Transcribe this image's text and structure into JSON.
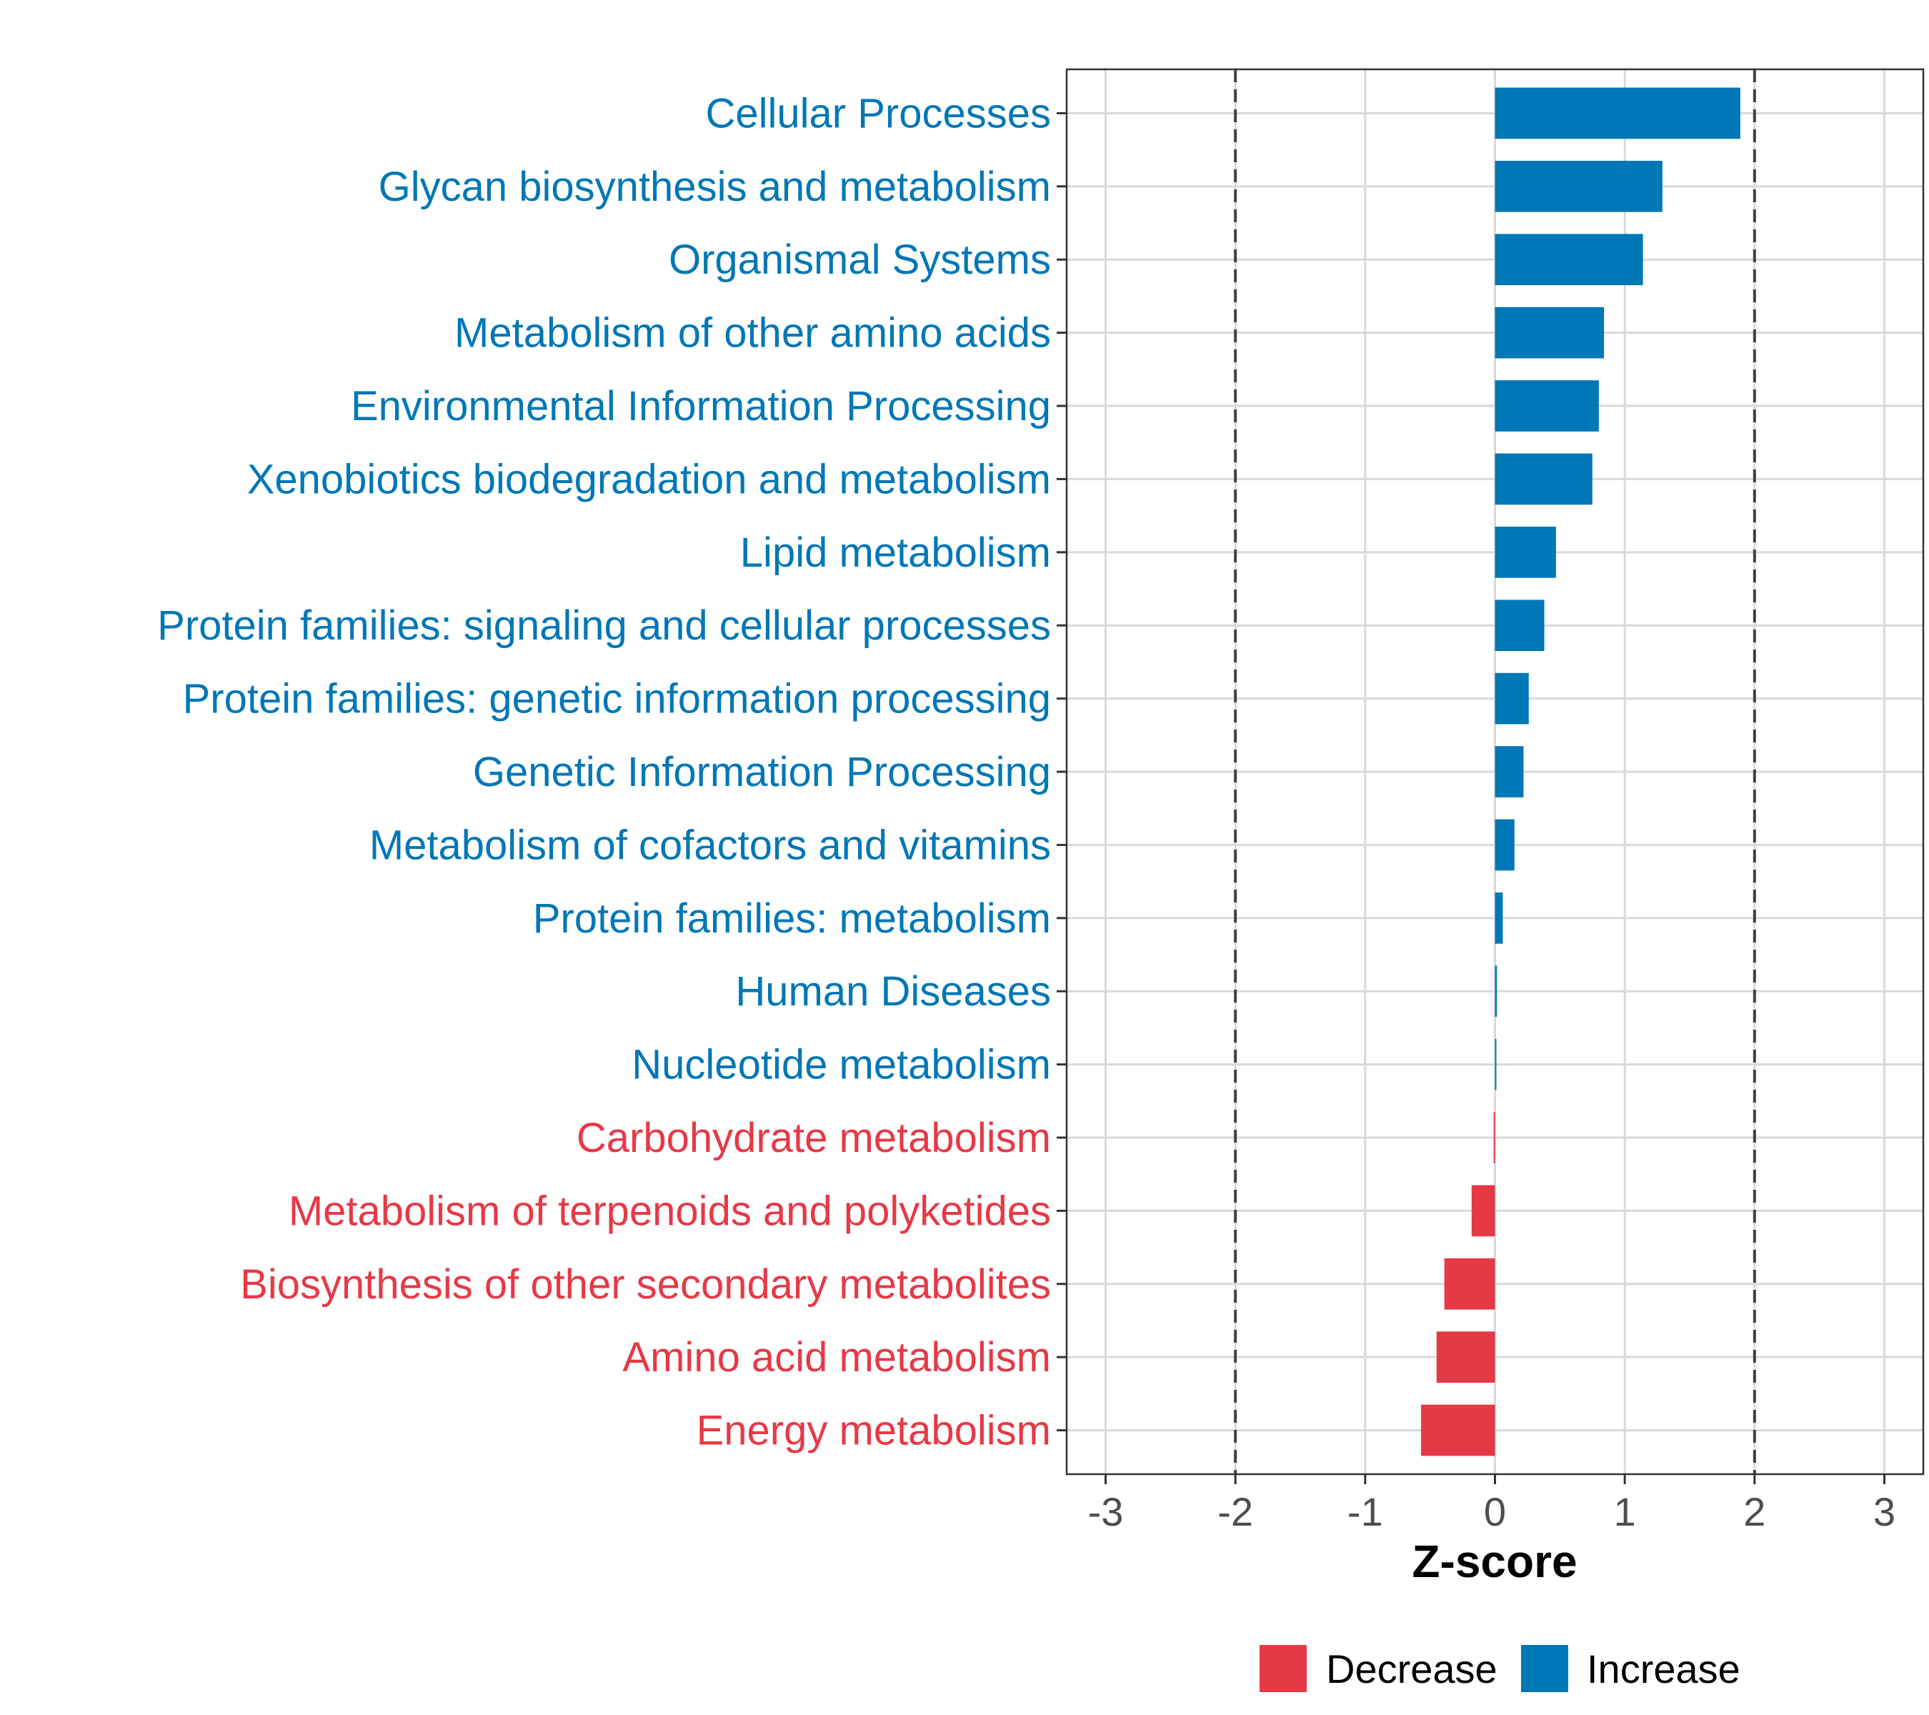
{
  "chart_data": {
    "type": "bar",
    "orientation": "horizontal",
    "title": "",
    "xlabel": "Z-score",
    "ylabel": "",
    "xlim": [
      -3.3,
      3.3
    ],
    "xticks": [
      -3,
      -2,
      -1,
      0,
      1,
      2,
      3
    ],
    "xtick_labels": [
      "-3",
      "-2",
      "-1",
      "0",
      "1",
      "2",
      "3"
    ],
    "reference_lines": [
      -2,
      2
    ],
    "grid": true,
    "categories": [
      "Cellular Processes",
      "Glycan biosynthesis and metabolism",
      "Organismal Systems",
      "Metabolism of other amino acids",
      "Environmental Information Processing",
      "Xenobiotics biodegradation and metabolism",
      "Lipid metabolism",
      "Protein families: signaling and cellular processes",
      "Protein families: genetic information processing",
      "Genetic Information Processing",
      "Metabolism of cofactors and vitamins",
      "Protein families: metabolism",
      "Human Diseases",
      "Nucleotide metabolism",
      "Carbohydrate metabolism",
      "Metabolism of terpenoids and polyketides",
      "Biosynthesis of other secondary metabolites",
      "Amino acid metabolism",
      "Energy metabolism"
    ],
    "values": [
      1.89,
      1.29,
      1.14,
      0.84,
      0.8,
      0.75,
      0.47,
      0.38,
      0.26,
      0.22,
      0.15,
      0.06,
      0.015,
      0.005,
      -0.01,
      -0.18,
      -0.39,
      -0.45,
      -0.57
    ],
    "groups": [
      "Increase",
      "Increase",
      "Increase",
      "Increase",
      "Increase",
      "Increase",
      "Increase",
      "Increase",
      "Increase",
      "Increase",
      "Increase",
      "Increase",
      "Increase",
      "Increase",
      "Decrease",
      "Decrease",
      "Decrease",
      "Decrease",
      "Decrease"
    ],
    "legend": {
      "placement": "bottom",
      "entries": [
        {
          "label": "Decrease",
          "color": "#e63946"
        },
        {
          "label": "Increase",
          "color": "#0077b6"
        }
      ]
    },
    "colors": {
      "Increase": "#0077b6",
      "Decrease": "#e63946"
    }
  }
}
